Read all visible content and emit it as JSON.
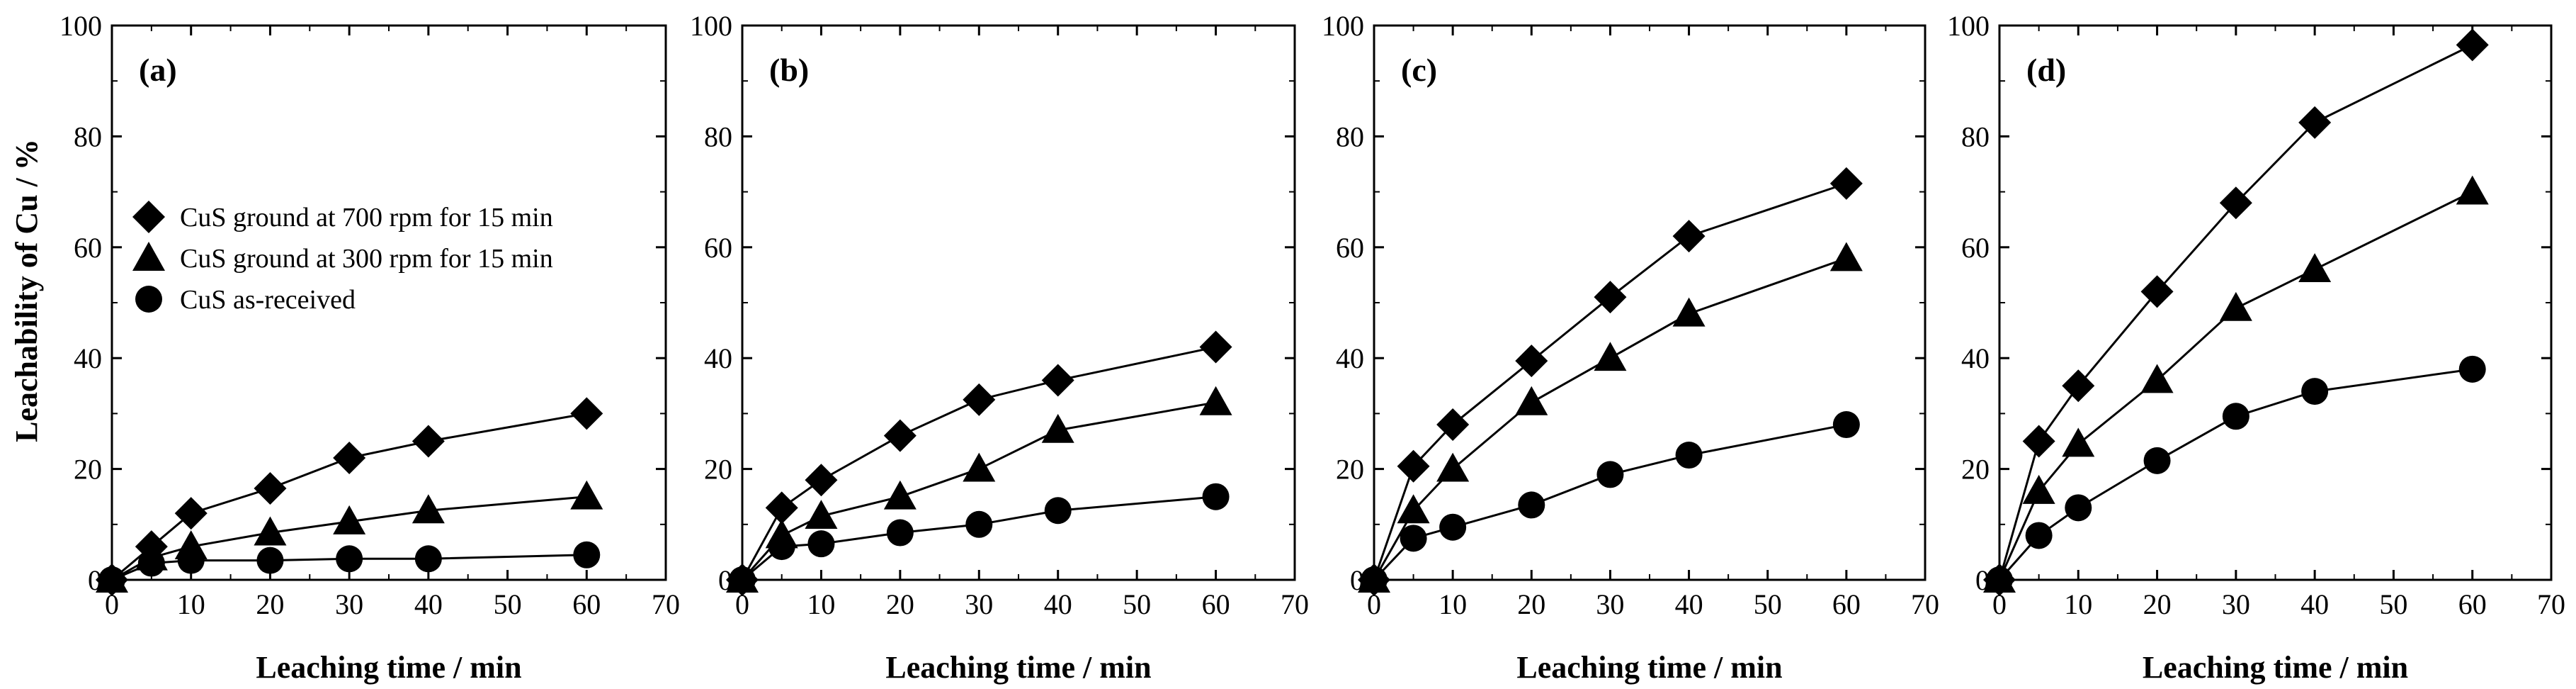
{
  "figure": {
    "ylabel": "Leachability of Cu / %",
    "legend": {
      "placement": "panel-a upper-left",
      "entries": [
        {
          "label": "CuS ground at 700 rpm for 15 min",
          "marker": "diamond"
        },
        {
          "label": "CuS ground at 300 rpm for 15 min",
          "marker": "triangle"
        },
        {
          "label": "CuS as-received",
          "marker": "circle"
        }
      ]
    }
  },
  "chart_data": [
    {
      "type": "line",
      "panel": "(a)",
      "xlabel": "Leaching time / min",
      "ylabel": "Leachability of Cu / %",
      "xlim": [
        0,
        70
      ],
      "ylim": [
        0,
        100
      ],
      "xticks": [
        0,
        10,
        20,
        30,
        40,
        50,
        60,
        70
      ],
      "yticks": [
        0,
        20,
        40,
        60,
        80,
        100
      ],
      "x": [
        0,
        5,
        10,
        20,
        30,
        40,
        60
      ],
      "series": [
        {
          "name": "CuS ground at 700 rpm for 15 min",
          "marker": "diamond",
          "values": [
            0,
            6,
            12,
            16.5,
            22,
            25,
            30
          ]
        },
        {
          "name": "CuS ground at 300 rpm for 15 min",
          "marker": "triangle",
          "values": [
            0,
            4,
            6,
            8.5,
            10.5,
            12.5,
            15
          ]
        },
        {
          "name": "CuS as-received",
          "marker": "circle",
          "values": [
            0,
            3,
            3.5,
            3.5,
            3.8,
            3.8,
            4.5
          ]
        }
      ]
    },
    {
      "type": "line",
      "panel": "(b)",
      "xlabel": "Leaching time / min",
      "ylabel": "",
      "xlim": [
        0,
        70
      ],
      "ylim": [
        0,
        100
      ],
      "xticks": [
        0,
        10,
        20,
        30,
        40,
        50,
        60,
        70
      ],
      "yticks": [
        0,
        20,
        40,
        60,
        80,
        100
      ],
      "x": [
        0,
        5,
        10,
        20,
        30,
        40,
        60
      ],
      "series": [
        {
          "name": "CuS ground at 700 rpm for 15 min",
          "marker": "diamond",
          "values": [
            0,
            13,
            18,
            26,
            32.5,
            36,
            42
          ]
        },
        {
          "name": "CuS ground at 300 rpm for 15 min",
          "marker": "triangle",
          "values": [
            0,
            8,
            11.5,
            15,
            20,
            27,
            32
          ]
        },
        {
          "name": "CuS as-received",
          "marker": "circle",
          "values": [
            0,
            6,
            6.5,
            8.5,
            10,
            12.5,
            15
          ]
        }
      ]
    },
    {
      "type": "line",
      "panel": "(c)",
      "xlabel": "Leaching time / min",
      "ylabel": "",
      "xlim": [
        0,
        70
      ],
      "ylim": [
        0,
        100
      ],
      "xticks": [
        0,
        10,
        20,
        30,
        40,
        50,
        60,
        70
      ],
      "yticks": [
        0,
        20,
        40,
        60,
        80,
        100
      ],
      "x": [
        0,
        5,
        10,
        20,
        30,
        40,
        60
      ],
      "series": [
        {
          "name": "CuS ground at 700 rpm for 15 min",
          "marker": "diamond",
          "values": [
            0,
            20.5,
            28,
            39.5,
            51,
            62,
            71.5
          ]
        },
        {
          "name": "CuS ground at 300 rpm for 15 min",
          "marker": "triangle",
          "values": [
            0,
            12.5,
            20,
            32,
            40,
            48,
            58
          ]
        },
        {
          "name": "CuS as-received",
          "marker": "circle",
          "values": [
            0,
            7.5,
            9.5,
            13.5,
            19,
            22.5,
            28
          ]
        }
      ]
    },
    {
      "type": "line",
      "panel": "(d)",
      "xlabel": "Leaching time / min",
      "ylabel": "",
      "xlim": [
        0,
        70
      ],
      "ylim": [
        0,
        100
      ],
      "xticks": [
        0,
        10,
        20,
        30,
        40,
        50,
        60,
        70
      ],
      "yticks": [
        0,
        20,
        40,
        60,
        80,
        100
      ],
      "x": [
        0,
        5,
        10,
        20,
        30,
        40,
        60
      ],
      "series": [
        {
          "name": "CuS ground at 700 rpm for 15 min",
          "marker": "diamond",
          "values": [
            0,
            25,
            35,
            52,
            68,
            82.5,
            96.5
          ]
        },
        {
          "name": "CuS ground at 300 rpm for 15 min",
          "marker": "triangle",
          "values": [
            0,
            16,
            24.5,
            36,
            49,
            56,
            70
          ]
        },
        {
          "name": "CuS as-received",
          "marker": "circle",
          "values": [
            0,
            8,
            13,
            21.5,
            29.5,
            34,
            38
          ]
        }
      ]
    }
  ]
}
